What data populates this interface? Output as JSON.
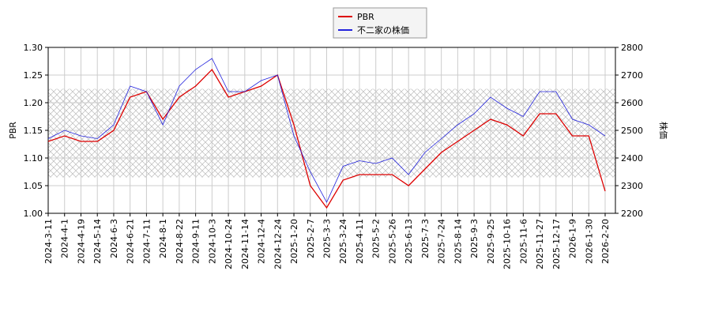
{
  "chart_data": {
    "type": "line",
    "x": [
      "2024-3-11",
      "2024-4-1",
      "2024-4-19",
      "2024-5-14",
      "2024-6-3",
      "2024-6-21",
      "2024-7-11",
      "2024-8-1",
      "2024-8-22",
      "2024-9-11",
      "2024-10-3",
      "2024-10-24",
      "2024-11-14",
      "2024-12-4",
      "2024-12-24",
      "2025-1-20",
      "2025-2-7",
      "2025-3-3",
      "2025-3-24",
      "2025-4-11",
      "2025-5-2",
      "2025-5-26",
      "2025-6-13",
      "2025-7-3",
      "2025-7-24",
      "2025-8-14",
      "2025-9-3",
      "2025-9-25",
      "2025-10-16",
      "2025-11-6",
      "2025-11-27",
      "2025-12-17",
      "2026-1-9",
      "2026-1-30",
      "2026-2-20"
    ],
    "series": [
      {
        "name": "PBR",
        "color": "#dd0000",
        "values": [
          1.13,
          1.14,
          1.13,
          1.13,
          1.15,
          1.21,
          1.22,
          1.17,
          1.21,
          1.23,
          1.26,
          1.21,
          1.22,
          1.23,
          1.25,
          1.16,
          1.05,
          1.01,
          1.06,
          1.07,
          1.07,
          1.07,
          1.05,
          1.08,
          1.11,
          1.13,
          1.15,
          1.17,
          1.16,
          1.14,
          1.18,
          1.18,
          1.14,
          1.14,
          1.04
        ]
      },
      {
        "name": "不二家の株価",
        "color": "#2222dd",
        "axis": "y2",
        "values": [
          2470,
          2500,
          2480,
          2470,
          2520,
          2660,
          2640,
          2520,
          2660,
          2720,
          2760,
          2640,
          2640,
          2680,
          2700,
          2480,
          2350,
          2240,
          2370,
          2390,
          2380,
          2400,
          2340,
          2420,
          2470,
          2520,
          2560,
          2620,
          2580,
          2550,
          2640,
          2640,
          2540,
          2520,
          2480
        ]
      }
    ],
    "ylabel": "PBR",
    "y2label": "株価",
    "ylim": [
      1.0,
      1.3
    ],
    "yticks": [
      {
        "value": 1.0,
        "label": "1.00"
      },
      1.05,
      {
        "value": 1.1,
        "label": "1.10"
      },
      1.15,
      {
        "value": 1.2,
        "label": "1.20"
      },
      1.25,
      {
        "value": 1.3,
        "label": "1.30"
      }
    ],
    "y2lim": [
      2200,
      2800
    ],
    "y2ticks": [
      2200,
      2300,
      2400,
      2500,
      2600,
      2700,
      2800
    ],
    "shaded_range": [
      1.065,
      1.225
    ],
    "grid": true,
    "legend": "top"
  }
}
